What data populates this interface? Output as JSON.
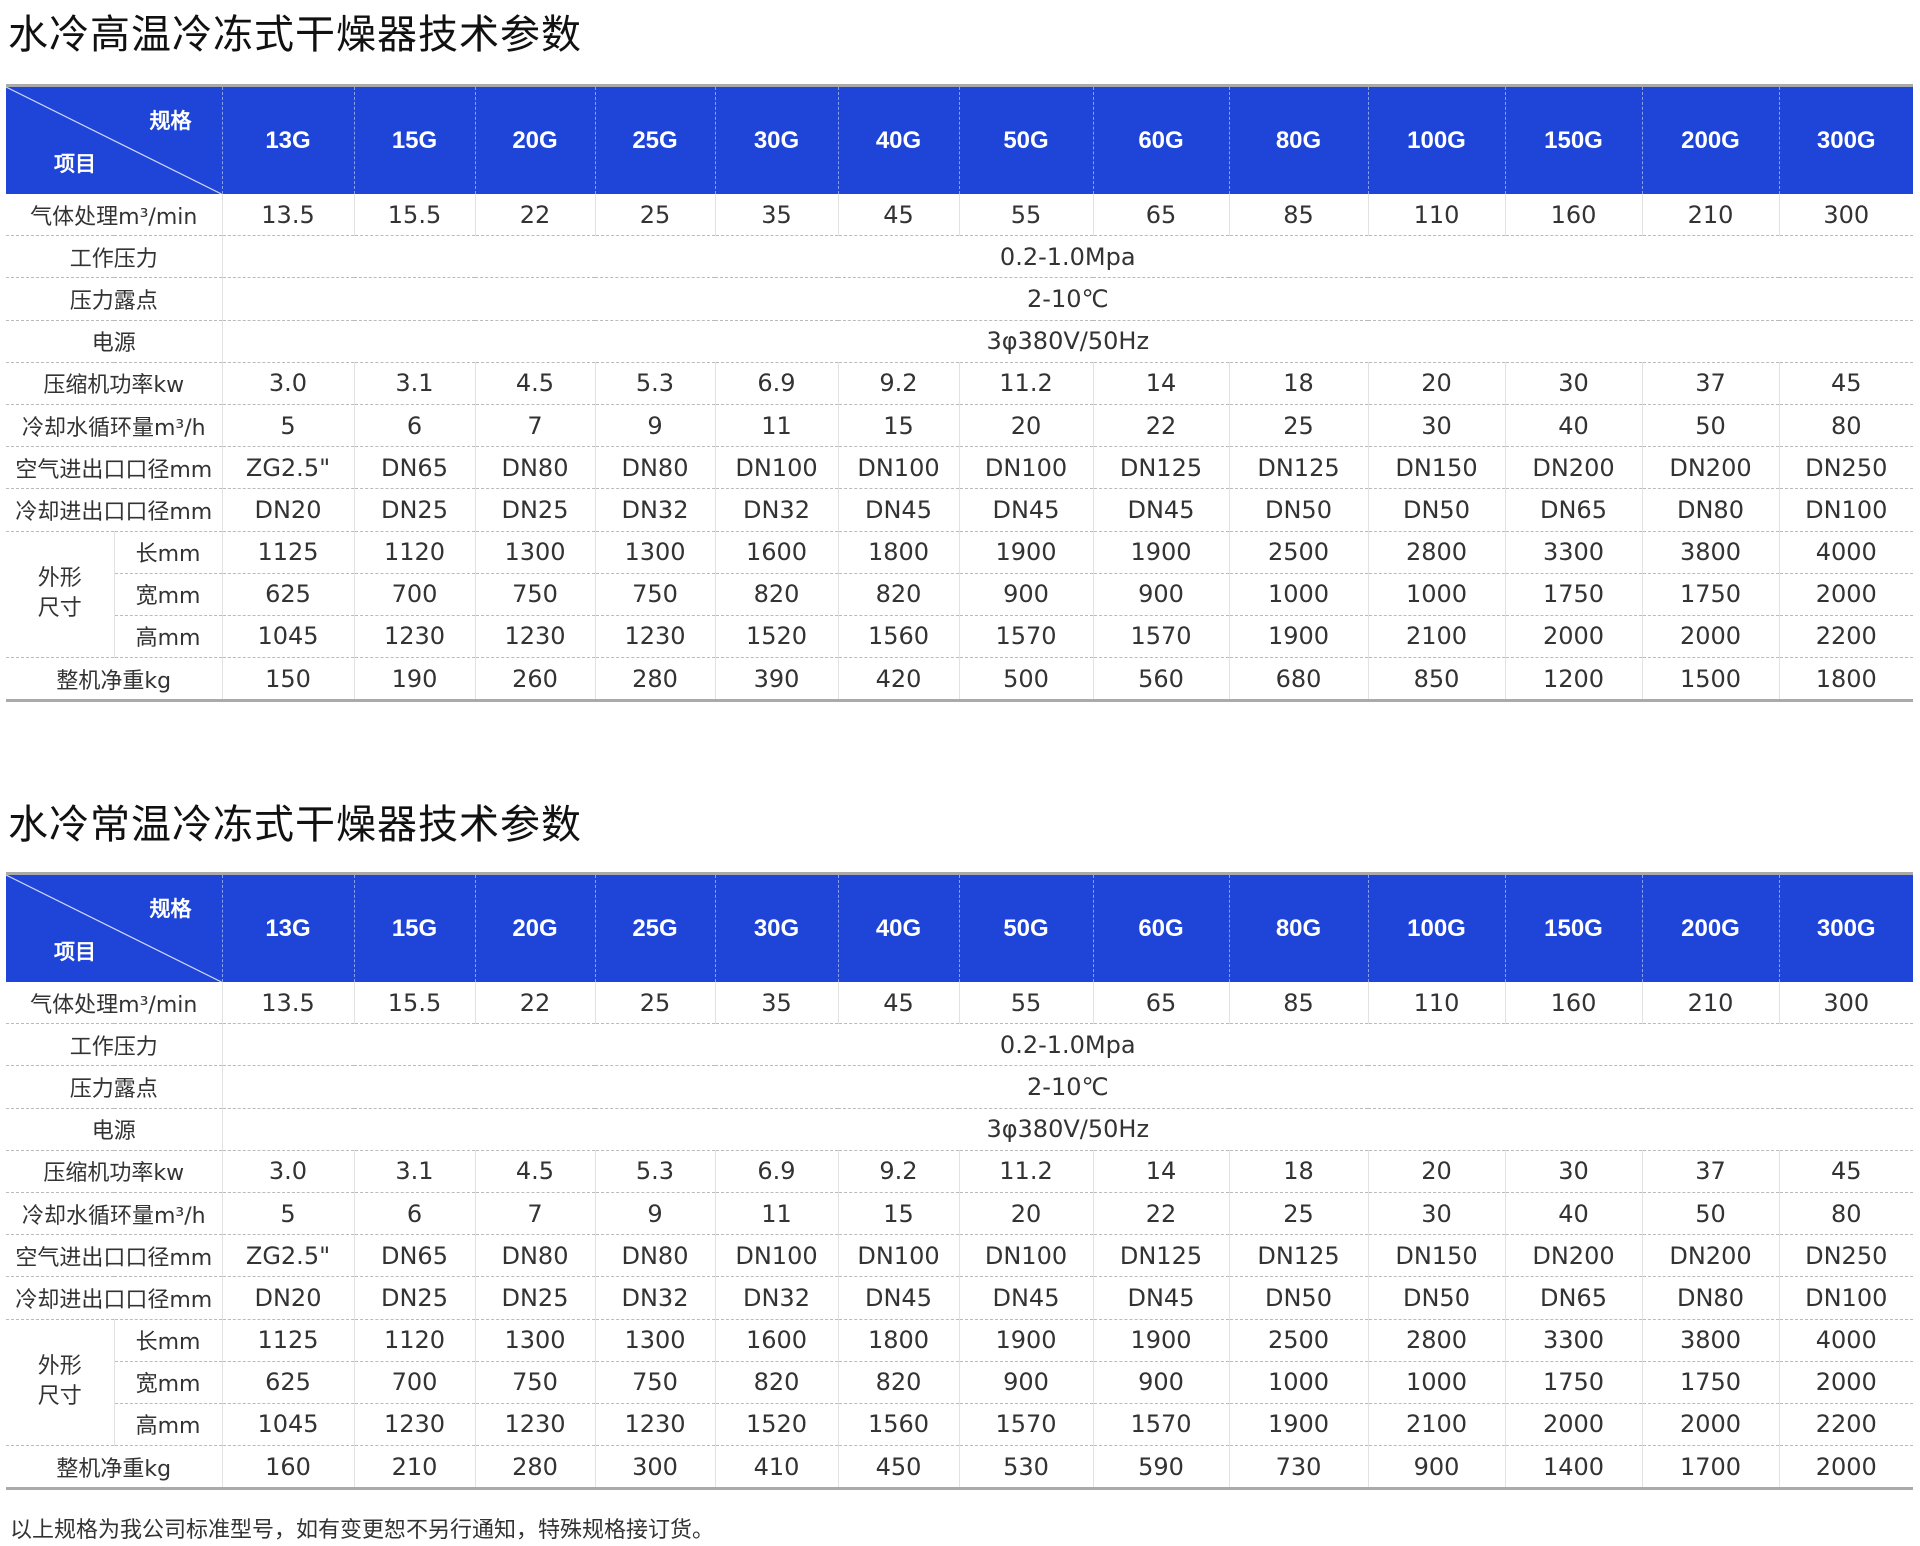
{
  "colors": {
    "header_bg": "#1f45d8",
    "header_text": "#ffffff"
  },
  "tables": [
    {
      "title": "水冷高温冷冻式干燥器技术参数",
      "corner_spec": "规格",
      "corner_item": "项目",
      "models": [
        "13G",
        "15G",
        "20G",
        "25G",
        "30G",
        "40G",
        "50G",
        "60G",
        "80G",
        "100G",
        "150G",
        "200G",
        "300G"
      ],
      "rows": [
        {
          "label": "气体处理m³/min",
          "values": [
            "13.5",
            "15.5",
            "22",
            "25",
            "35",
            "45",
            "55",
            "65",
            "85",
            "110",
            "160",
            "210",
            "300"
          ]
        },
        {
          "label": "工作压力",
          "span": "0.2-1.0Mpa"
        },
        {
          "label": "压力露点",
          "span": "2-10℃"
        },
        {
          "label": "电源",
          "span": "3φ380V/50Hz"
        },
        {
          "label": "压缩机功率kw",
          "values": [
            "3.0",
            "3.1",
            "4.5",
            "5.3",
            "6.9",
            "9.2",
            "11.2",
            "14",
            "18",
            "20",
            "30",
            "37",
            "45"
          ]
        },
        {
          "label": "冷却水循环量m³/h",
          "values": [
            "5",
            "6",
            "7",
            "9",
            "11",
            "15",
            "20",
            "22",
            "25",
            "30",
            "40",
            "50",
            "80"
          ]
        },
        {
          "label": "空气进出口口径mm",
          "values": [
            "ZG2.5\"",
            "DN65",
            "DN80",
            "DN80",
            "DN100",
            "DN100",
            "DN100",
            "DN125",
            "DN125",
            "DN150",
            "DN200",
            "DN200",
            "DN250"
          ]
        },
        {
          "label": "冷却进出口口径mm",
          "values": [
            "DN20",
            "DN25",
            "DN25",
            "DN32",
            "DN32",
            "DN45",
            "DN45",
            "DN45",
            "DN50",
            "DN50",
            "DN65",
            "DN80",
            "DN100"
          ]
        },
        {
          "group": "外形尺寸",
          "label": "长mm",
          "values": [
            "1125",
            "1120",
            "1300",
            "1300",
            "1600",
            "1800",
            "1900",
            "1900",
            "2500",
            "2800",
            "3300",
            "3800",
            "4000"
          ]
        },
        {
          "label": "宽mm",
          "values": [
            "625",
            "700",
            "750",
            "750",
            "820",
            "820",
            "900",
            "900",
            "1000",
            "1000",
            "1750",
            "1750",
            "2000"
          ]
        },
        {
          "label": "高mm",
          "values": [
            "1045",
            "1230",
            "1230",
            "1230",
            "1520",
            "1560",
            "1570",
            "1570",
            "1900",
            "2100",
            "2000",
            "2000",
            "2200"
          ]
        },
        {
          "label": "整机净重kg",
          "values": [
            "150",
            "190",
            "260",
            "280",
            "390",
            "420",
            "500",
            "560",
            "680",
            "850",
            "1200",
            "1500",
            "1800"
          ]
        }
      ]
    },
    {
      "title": "水冷常温冷冻式干燥器技术参数",
      "corner_spec": "规格",
      "corner_item": "项目",
      "models": [
        "13G",
        "15G",
        "20G",
        "25G",
        "30G",
        "40G",
        "50G",
        "60G",
        "80G",
        "100G",
        "150G",
        "200G",
        "300G"
      ],
      "rows": [
        {
          "label": "气体处理m³/min",
          "values": [
            "13.5",
            "15.5",
            "22",
            "25",
            "35",
            "45",
            "55",
            "65",
            "85",
            "110",
            "160",
            "210",
            "300"
          ]
        },
        {
          "label": "工作压力",
          "span": "0.2-1.0Mpa"
        },
        {
          "label": "压力露点",
          "span": "2-10℃"
        },
        {
          "label": "电源",
          "span": "3φ380V/50Hz"
        },
        {
          "label": "压缩机功率kw",
          "values": [
            "3.0",
            "3.1",
            "4.5",
            "5.3",
            "6.9",
            "9.2",
            "11.2",
            "14",
            "18",
            "20",
            "30",
            "37",
            "45"
          ]
        },
        {
          "label": "冷却水循环量m³/h",
          "values": [
            "5",
            "6",
            "7",
            "9",
            "11",
            "15",
            "20",
            "22",
            "25",
            "30",
            "40",
            "50",
            "80"
          ]
        },
        {
          "label": "空气进出口口径mm",
          "values": [
            "ZG2.5\"",
            "DN65",
            "DN80",
            "DN80",
            "DN100",
            "DN100",
            "DN100",
            "DN125",
            "DN125",
            "DN150",
            "DN200",
            "DN200",
            "DN250"
          ]
        },
        {
          "label": "冷却进出口口径mm",
          "values": [
            "DN20",
            "DN25",
            "DN25",
            "DN32",
            "DN32",
            "DN45",
            "DN45",
            "DN45",
            "DN50",
            "DN50",
            "DN65",
            "DN80",
            "DN100"
          ]
        },
        {
          "group": "外形尺寸",
          "label": "长mm",
          "values": [
            "1125",
            "1120",
            "1300",
            "1300",
            "1600",
            "1800",
            "1900",
            "1900",
            "2500",
            "2800",
            "3300",
            "3800",
            "4000"
          ]
        },
        {
          "label": "宽mm",
          "values": [
            "625",
            "700",
            "750",
            "750",
            "820",
            "820",
            "900",
            "900",
            "1000",
            "1000",
            "1750",
            "1750",
            "2000"
          ]
        },
        {
          "label": "高mm",
          "values": [
            "1045",
            "1230",
            "1230",
            "1230",
            "1520",
            "1560",
            "1570",
            "1570",
            "1900",
            "2100",
            "2000",
            "2000",
            "2200"
          ]
        },
        {
          "label": "整机净重kg",
          "values": [
            "160",
            "210",
            "280",
            "300",
            "410",
            "450",
            "530",
            "590",
            "730",
            "900",
            "1400",
            "1700",
            "2000"
          ]
        }
      ]
    }
  ],
  "footnote": "以上规格为我公司标准型号，如有变更恕不另行通知，特殊规格接订货。"
}
